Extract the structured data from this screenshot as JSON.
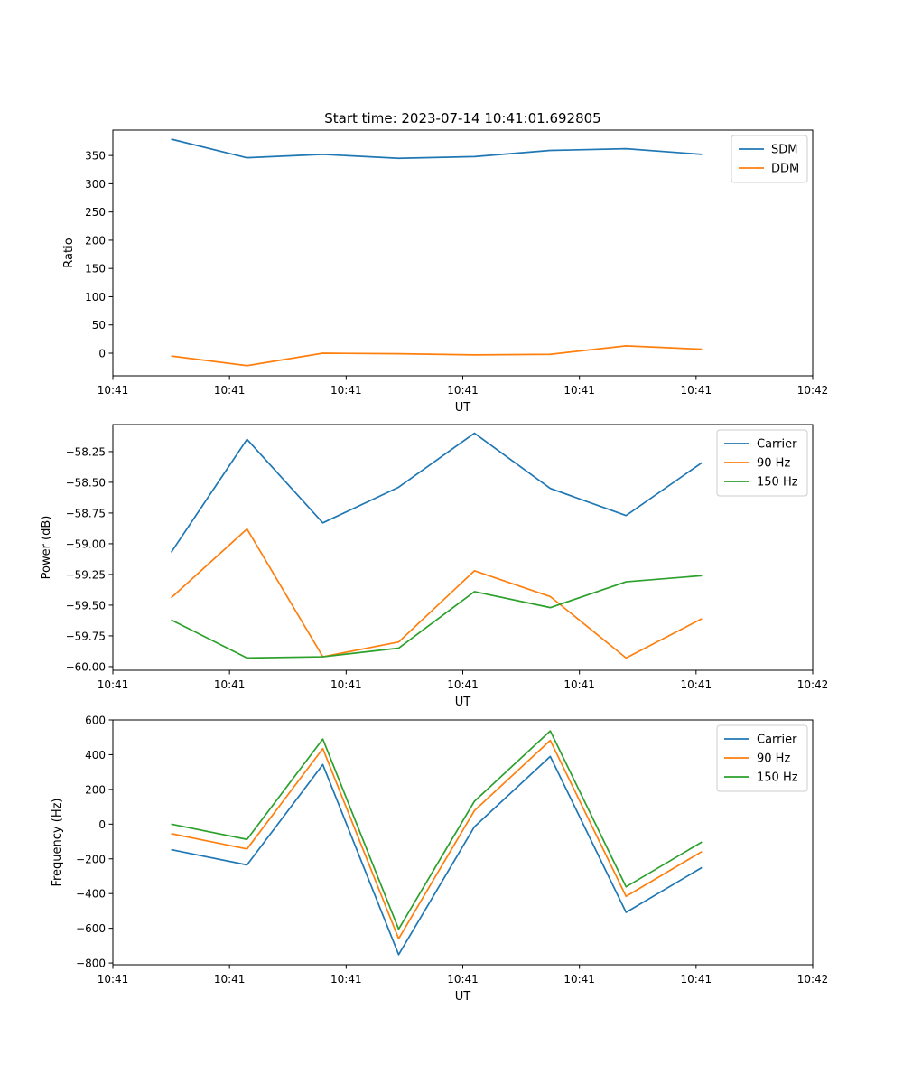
{
  "figure_title": "Start time: 2023-07-14 10:41:01.692805",
  "colors": {
    "blue": "#1f77b4",
    "orange": "#ff7f0e",
    "green": "#2ca02c"
  },
  "chart_data": [
    {
      "type": "line",
      "title": "Start time: 2023-07-14 10:41:01.692805",
      "xlabel": "UT",
      "ylabel": "Ratio",
      "xlim": [
        0,
        12
      ],
      "ylim": [
        -40,
        395
      ],
      "xticks": [
        0,
        2,
        4,
        6,
        8,
        10,
        12
      ],
      "xtick_labels": [
        "10:41",
        "10:41",
        "10:41",
        "10:41",
        "10:41",
        "10:41",
        "10:42"
      ],
      "yticks": [
        0,
        50,
        100,
        150,
        200,
        250,
        300,
        350
      ],
      "ytick_labels": [
        "0",
        "50",
        "100",
        "150",
        "200",
        "250",
        "300",
        "350"
      ],
      "x": [
        1,
        2.3,
        3.6,
        4.9,
        6.2,
        7.5,
        8.8,
        10.1
      ],
      "legend_position": "upper-right",
      "series": [
        {
          "name": "SDM",
          "color": "#1f77b4",
          "values": [
            379,
            346,
            352,
            345,
            348,
            359,
            362,
            352
          ]
        },
        {
          "name": "DDM",
          "color": "#ff7f0e",
          "values": [
            -5,
            -22,
            0,
            -1,
            -3,
            -2,
            13,
            7
          ]
        }
      ]
    },
    {
      "type": "line",
      "title": "",
      "xlabel": "UT",
      "ylabel": "Power (dB)",
      "xlim": [
        0,
        12
      ],
      "ylim": [
        -60.03,
        -58.03
      ],
      "xticks": [
        0,
        2,
        4,
        6,
        8,
        10,
        12
      ],
      "xtick_labels": [
        "10:41",
        "10:41",
        "10:41",
        "10:41",
        "10:41",
        "10:41",
        "10:42"
      ],
      "yticks": [
        -60.0,
        -59.75,
        -59.5,
        -59.25,
        -59.0,
        -58.75,
        -58.5,
        -58.25
      ],
      "ytick_labels": [
        "−60.00",
        "−59.75",
        "−59.50",
        "−59.25",
        "−59.00",
        "−58.75",
        "−58.50",
        "−58.25"
      ],
      "x": [
        1,
        2.3,
        3.6,
        4.9,
        6.2,
        7.5,
        8.8,
        10.1
      ],
      "legend_position": "upper-right",
      "series": [
        {
          "name": "Carrier",
          "color": "#1f77b4",
          "values": [
            -59.07,
            -58.15,
            -58.83,
            -58.54,
            -58.1,
            -58.55,
            -58.77,
            -58.34
          ]
        },
        {
          "name": "90 Hz",
          "color": "#ff7f0e",
          "values": [
            -59.44,
            -58.88,
            -59.92,
            -59.8,
            -59.22,
            -59.43,
            -59.93,
            -59.61
          ]
        },
        {
          "name": "150 Hz",
          "color": "#2ca02c",
          "values": [
            -59.62,
            -59.93,
            -59.92,
            -59.85,
            -59.39,
            -59.52,
            -59.31,
            -59.26
          ]
        }
      ]
    },
    {
      "type": "line",
      "title": "",
      "xlabel": "UT",
      "ylabel": "Frequency (Hz)",
      "xlim": [
        0,
        12
      ],
      "ylim": [
        -810,
        600
      ],
      "xticks": [
        0,
        2,
        4,
        6,
        8,
        10,
        12
      ],
      "xtick_labels": [
        "10:41",
        "10:41",
        "10:41",
        "10:41",
        "10:41",
        "10:41",
        "10:42"
      ],
      "yticks": [
        -800,
        -600,
        -400,
        -200,
        0,
        200,
        400,
        600
      ],
      "ytick_labels": [
        "−800",
        "−600",
        "−400",
        "−200",
        "0",
        "200",
        "400",
        "600"
      ],
      "x": [
        1,
        2.3,
        3.6,
        4.9,
        6.2,
        7.5,
        8.8,
        10.1
      ],
      "legend_position": "upper-right",
      "series": [
        {
          "name": "Carrier",
          "color": "#1f77b4",
          "values": [
            -147,
            -235,
            343,
            -752,
            -15,
            390,
            -508,
            -250
          ]
        },
        {
          "name": "90 Hz",
          "color": "#ff7f0e",
          "values": [
            -55,
            -143,
            435,
            -660,
            78,
            482,
            -416,
            -158
          ]
        },
        {
          "name": "150 Hz",
          "color": "#2ca02c",
          "values": [
            0,
            -88,
            490,
            -605,
            132,
            537,
            -361,
            -103
          ]
        }
      ]
    }
  ]
}
